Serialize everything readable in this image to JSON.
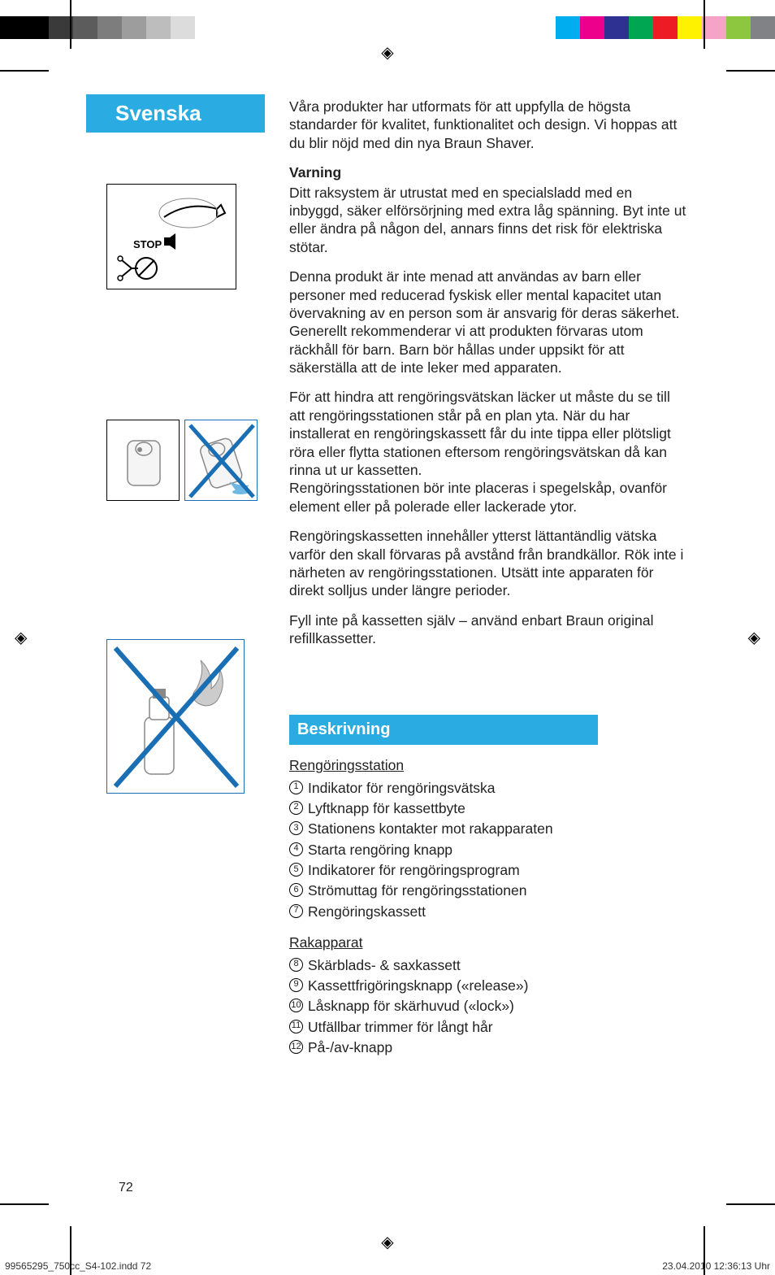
{
  "colorbar": {
    "left_chips": [
      "#000000",
      "#000000",
      "#3a3a3a",
      "#5c5c5c",
      "#7d7d7d",
      "#9d9d9d",
      "#bdbdbd",
      "#dcdcdc",
      "#ffffff"
    ],
    "right_chips": [
      "#00aeef",
      "#ec008c",
      "#2e3192",
      "#00a651",
      "#ed1c24",
      "#fff200",
      "#f5a3c7",
      "#8dc63f",
      "#808285"
    ]
  },
  "language_header": "Svenska",
  "intro": "Våra produkter har utformats för att uppfylla de högsta standarder för kvalitet, funktionalitet och design. Vi hoppas att du blir nöjd med din nya Braun Shaver.",
  "warning_head": "Varning",
  "warning_p1": "Ditt raksystem är utrustat med en specialsladd med en inbyggd, säker elförsörjning med extra låg spänning.  Byt inte ut eller ändra på någon del, annars finns det risk för elektriska stötar.",
  "warning_p2": "Denna produkt är inte menad att användas av barn eller personer med reducerad fyskisk eller mental kapacitet utan övervakning av en person som är ansvarig för deras säkerhet. Generellt rekommenderar vi att produkten förvaras utom räckhåll för barn. Barn bör hållas under uppsikt för att säkerställa att de inte leker med apparaten.",
  "warning_p3a": "För att hindra att rengöringsvätskan läcker ut måste du se till att rengöringsstationen står på en plan yta.  När du har installerat en rengöringskassett får du inte tippa eller plötsligt röra eller flytta stationen eftersom rengöringsvätskan då kan rinna ut ur kassetten.",
  "warning_p3b": "Rengöringsstationen bör inte placeras i spegelskåp, ovanför element eller på polerade eller lackerade ytor.",
  "warning_p4": "Rengöringskassetten innehåller ytterst lättantändlig vätska varför den skall förvaras på avstånd från brandkällor. Rök inte i närheten av rengöringsstationen. Utsätt inte apparaten för direkt solljus under längre perioder.",
  "warning_p5": "Fyll inte på kassetten själv – använd enbart Braun original refillkassetter.",
  "section_bar": "Beskrivning",
  "sub1": "Rengöringsstation",
  "list1": [
    "Indikator för rengöringsvätska",
    "Lyftknapp för kassettbyte",
    "Stationens kontakter mot rakapparaten",
    "Starta rengöring knapp",
    "Indikatorer för rengöringsprogram",
    "Strömuttag för rengöringsstationen",
    "Rengöringskassett"
  ],
  "sub2": "Rakapparat",
  "list2": [
    "Skärblads- & saxkassett",
    "Kassettfrigöringsknapp («release»)",
    "Låsknapp för skärhuvud («lock»)",
    "Utfällbar trimmer för långt hår",
    "På-/av-knapp"
  ],
  "list2_start": 8,
  "page_number": "72",
  "footer_left": "99565295_750cc_S4-102.indd   72",
  "footer_right": "23.04.2010   12:36:13 Uhr",
  "stop_label": "STOP",
  "cross_color": "#1a6fb4"
}
